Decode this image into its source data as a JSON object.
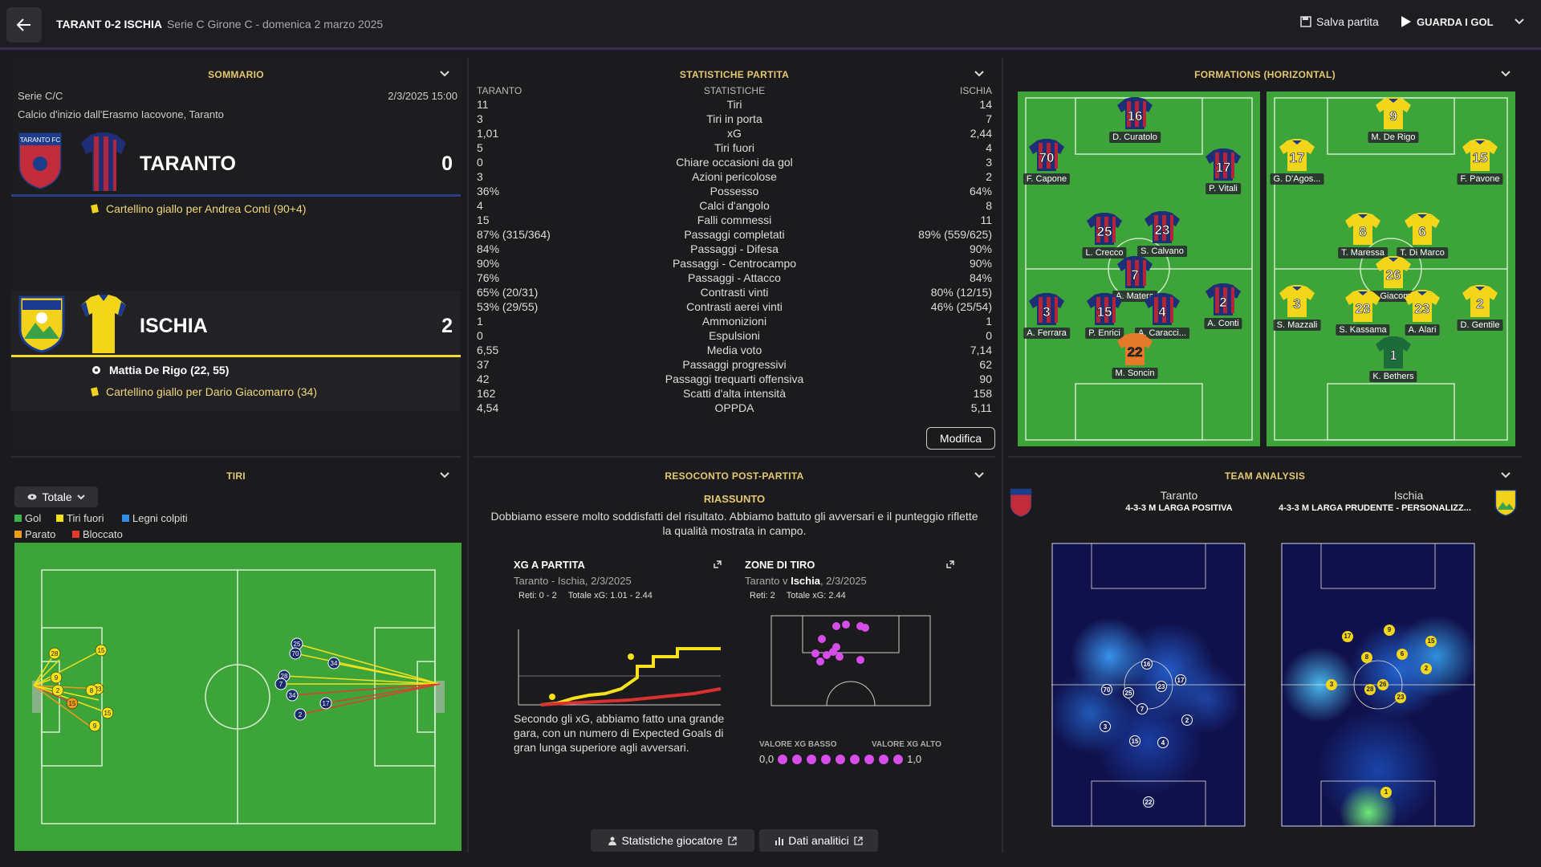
{
  "header": {
    "match": "TARANT 0-2 ISCHIA",
    "subtitle": "Serie C Girone C - domenica 2 marzo 2025",
    "save": "Salva partita",
    "goals": "GUARDA I GOL"
  },
  "summary": {
    "title": "SOMMARIO",
    "league": "Serie C/C",
    "datetime": "2/3/2025 15:00",
    "kickoff": "Calcio d'inizio dall'Erasmo Iacovone, Taranto",
    "home": {
      "name": "TARANTO",
      "score": "0",
      "event1": "Cartellino giallo per Andrea Conti (90+4)"
    },
    "away": {
      "name": "ISCHIA",
      "score": "2",
      "goal": "Mattia De Rigo (22, 55)",
      "event1": "Cartellino giallo per Dario Giacomarro (34)"
    }
  },
  "stats": {
    "title": "STATISTICHE PARTITA",
    "h_home": "TARANTO",
    "h_mid": "STATISTICHE",
    "h_away": "ISCHIA",
    "rows": [
      [
        "11",
        "Tiri",
        "14"
      ],
      [
        "3",
        "Tiri in porta",
        "7"
      ],
      [
        "1,01",
        "xG",
        "2,44"
      ],
      [
        "5",
        "Tiri fuori",
        "4"
      ],
      [
        "0",
        "Chiare occasioni da gol",
        "3"
      ],
      [
        "3",
        "Azioni pericolose",
        "2"
      ],
      [
        "36%",
        "Possesso",
        "64%"
      ],
      [
        "4",
        "Calci d'angolo",
        "8"
      ],
      [
        "15",
        "Falli commessi",
        "11"
      ],
      [
        "87% (315/364)",
        "Passaggi completati",
        "89% (559/625)"
      ],
      [
        "84%",
        "Passaggi - Difesa",
        "90%"
      ],
      [
        "90%",
        "Passaggi - Centrocampo",
        "90%"
      ],
      [
        "76%",
        "Passaggi - Attacco",
        "84%"
      ],
      [
        "65% (20/31)",
        "Contrasti vinti",
        "80% (12/15)"
      ],
      [
        "53% (29/55)",
        "Contrasti aerei vinti",
        "46% (25/54)"
      ],
      [
        "1",
        "Ammonizioni",
        "1"
      ],
      [
        "0",
        "Espulsioni",
        "0"
      ],
      [
        "6,55",
        "Media voto",
        "7,14"
      ],
      [
        "37",
        "Passaggi progressivi",
        "62"
      ],
      [
        "42",
        "Passaggi trequarti offensiva",
        "90"
      ],
      [
        "162",
        "Scatti d'alta intensità",
        "158"
      ],
      [
        "4,54",
        "OPPDA",
        "5,11"
      ]
    ],
    "edit": "Modifica"
  },
  "formations": {
    "title": "FORMATIONS (HORIZONTAL)",
    "home": [
      {
        "n": "16",
        "name": "D. Curatolo"
      },
      {
        "n": "70",
        "name": "F. Capone"
      },
      {
        "n": "17",
        "name": "P. Vitali"
      },
      {
        "n": "25",
        "name": "L. Crecco"
      },
      {
        "n": "23",
        "name": "S. Calvano"
      },
      {
        "n": "7",
        "name": "A. Matera"
      },
      {
        "n": "3",
        "name": "A. Ferrara"
      },
      {
        "n": "15",
        "name": "P. Enrici"
      },
      {
        "n": "4",
        "name": "A. Caracci..."
      },
      {
        "n": "2",
        "name": "A. Conti"
      },
      {
        "n": "22",
        "name": "M. Soncin"
      }
    ],
    "away": [
      {
        "n": "9",
        "name": "M. De Rigo"
      },
      {
        "n": "17",
        "name": "G. D'Agos..."
      },
      {
        "n": "15",
        "name": "F. Pavone"
      },
      {
        "n": "8",
        "name": "T. Maressa"
      },
      {
        "n": "6",
        "name": "T. Di Marco"
      },
      {
        "n": "26",
        "name": "D. Giacom..."
      },
      {
        "n": "3",
        "name": "S. Mazzali"
      },
      {
        "n": "28",
        "name": "S. Kassama"
      },
      {
        "n": "23",
        "name": "A. Alari"
      },
      {
        "n": "2",
        "name": "D. Gentile"
      },
      {
        "n": "1",
        "name": "K. Bethers"
      }
    ]
  },
  "shots": {
    "title": "TIRI",
    "filter": "Totale",
    "legend": [
      "Gol",
      "Tiri fuori",
      "Legni colpiti",
      "Parato",
      "Bloccato"
    ],
    "colors": {
      "goal": "#3cb34a",
      "off": "#f5e11c",
      "post": "#2f8fe8",
      "saved": "#f09a1c",
      "blocked": "#e23c2c"
    },
    "home_numbers": [
      "28",
      "15",
      "9",
      "2",
      "15",
      "23",
      "8",
      "15",
      "9"
    ],
    "away_numbers": [
      "25",
      "70",
      "28",
      "7",
      "34",
      "34",
      "17",
      "2"
    ]
  },
  "report": {
    "title": "RESOCONTO POST-PARTITA",
    "heading": "RIASSUNTO",
    "text": "Dobbiamo essere molto soddisfatti del risultato. Abbiamo battuto gli avversari e il punteggio riflette la qualità mostrata in campo.",
    "xg_title": "XG A PARTITA",
    "xg_sub": "Taranto - Ischia, 2/3/2025",
    "xg_goals": "Reti: 0 - 2",
    "xg_total": "Totale xG: 1.01 - 2.44",
    "xg_text": "Secondo gli xG, abbiamo fatto una grande gara, con un numero di Expected Goals di gran lunga superiore agli avversari.",
    "zone_title": "ZONE DI TIRO",
    "zone_sub_a": "Taranto v ",
    "zone_sub_b": "Ischia",
    "zone_sub_c": ", 2/3/2025",
    "zone_goals": "Reti: 2",
    "zone_total": "Totale xG: 2.44",
    "xg_low": "VALORE XG BASSO",
    "xg_high": "VALORE XG ALTO",
    "scale_min": "0,0",
    "scale_max": "1,0",
    "btn_players": "Statistiche giocatore",
    "btn_data": "Dati analitici"
  },
  "analysis": {
    "title": "TEAM ANALYSIS",
    "home": "Taranto",
    "home_tactic": "4-3-3 M LARGA POSITIVA",
    "away": "Ischia",
    "away_tactic": "4-3-3 M LARGA PRUDENTE - PERSONALIZZ...",
    "home_nums": [
      "16",
      "70",
      "25",
      "23",
      "17",
      "7",
      "3",
      "15",
      "4",
      "2",
      "22"
    ],
    "away_nums": [
      "17",
      "9",
      "15",
      "8",
      "6",
      "3",
      "28",
      "26",
      "23",
      "2",
      "1"
    ]
  }
}
